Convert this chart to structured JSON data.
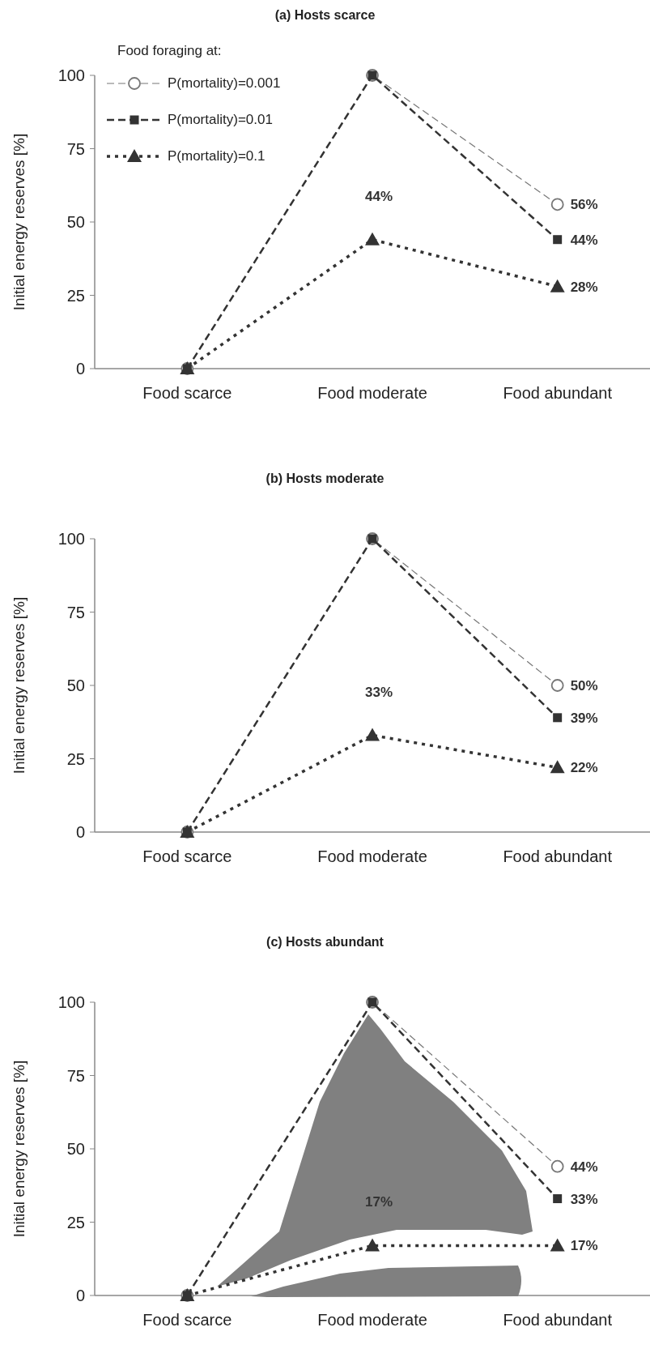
{
  "chart_data": [
    {
      "type": "line",
      "title": "(a) Hosts scarce",
      "ylabel": "Initial energy reserves [%]",
      "legend_title": "Food foraging at:",
      "legend": "top left",
      "categories": [
        "Food scarce",
        "Food moderate",
        "Food abundant"
      ],
      "ylim": [
        0,
        100
      ],
      "yticks": [
        0,
        25,
        50,
        75,
        100
      ],
      "grid": false,
      "series": [
        {
          "name": "P(mortality)=0.001",
          "color": "#777777",
          "marker": "circle",
          "line_style": "dashed",
          "values": [
            0,
            100,
            56
          ],
          "value_labels": [
            null,
            null,
            "56%"
          ]
        },
        {
          "name": "P(mortality)=0.01",
          "color": "#333333",
          "marker": "square",
          "line_style": "dashed",
          "values": [
            0,
            100,
            44
          ],
          "value_labels": [
            null,
            null,
            "44%"
          ]
        },
        {
          "name": "P(mortality)=0.1",
          "color": "#333333",
          "marker": "triangle",
          "line_style": "dotted",
          "values": [
            0,
            44,
            28
          ],
          "value_labels": [
            null,
            "44%",
            "28%"
          ]
        }
      ]
    },
    {
      "type": "line",
      "title": "(b) Hosts moderate",
      "ylabel": "Initial energy reserves [%]",
      "categories": [
        "Food scarce",
        "Food moderate",
        "Food abundant"
      ],
      "ylim": [
        0,
        100
      ],
      "yticks": [
        0,
        25,
        50,
        75,
        100
      ],
      "grid": false,
      "series": [
        {
          "color": "#777777",
          "marker": "circle",
          "line_style": "dashed",
          "values": [
            0,
            100,
            50
          ],
          "value_labels": [
            null,
            null,
            "50%"
          ]
        },
        {
          "color": "#333333",
          "marker": "square",
          "line_style": "dashed",
          "values": [
            0,
            100,
            39
          ],
          "value_labels": [
            null,
            null,
            "39%"
          ]
        },
        {
          "color": "#333333",
          "marker": "triangle",
          "line_style": "dotted",
          "values": [
            0,
            33,
            22
          ],
          "value_labels": [
            null,
            "33%",
            "22%"
          ]
        }
      ]
    },
    {
      "type": "line",
      "title": "(c) Hosts abundant",
      "ylabel": "Initial energy reserves [%]",
      "categories": [
        "Food scarce",
        "Food moderate",
        "Food abundant"
      ],
      "ylim": [
        0,
        100
      ],
      "yticks": [
        0,
        25,
        50,
        75,
        100
      ],
      "grid": false,
      "series": [
        {
          "color": "#777777",
          "marker": "circle",
          "line_style": "dashed",
          "values": [
            0,
            100,
            44
          ],
          "value_labels": [
            null,
            null,
            "44%"
          ]
        },
        {
          "color": "#333333",
          "marker": "square",
          "line_style": "dashed",
          "values": [
            0,
            100,
            33
          ],
          "value_labels": [
            null,
            null,
            "33%"
          ]
        },
        {
          "color": "#333333",
          "marker": "triangle",
          "line_style": "dotted",
          "values": [
            0,
            17,
            17
          ],
          "value_labels": [
            null,
            "17%",
            "17%"
          ]
        }
      ]
    }
  ]
}
